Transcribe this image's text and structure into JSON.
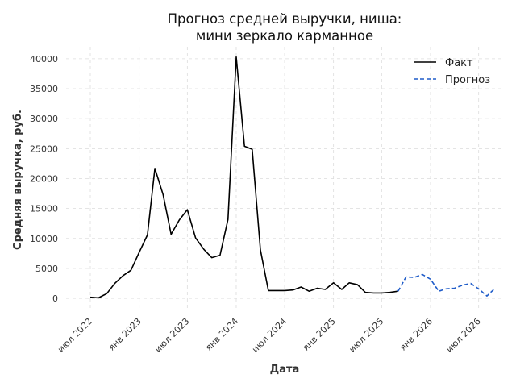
{
  "chart_data": {
    "type": "line",
    "title_lines": [
      "Прогноз средней выручки, ниша:",
      "мини зеркало карманное"
    ],
    "xlabel": "Дата",
    "ylabel": "Средняя выручка, руб.",
    "ylim": [
      -2000,
      42000
    ],
    "xlim": [
      "2022-04-01",
      "2026-10-01"
    ],
    "y_ticks": [
      0,
      5000,
      10000,
      15000,
      20000,
      25000,
      30000,
      35000,
      40000
    ],
    "x_ticks": [
      {
        "date": "2022-07-01",
        "label": "июл 2022"
      },
      {
        "date": "2023-01-01",
        "label": "янв 2023"
      },
      {
        "date": "2023-07-01",
        "label": "июл 2023"
      },
      {
        "date": "2024-01-01",
        "label": "янв 2024"
      },
      {
        "date": "2024-07-01",
        "label": "июл 2024"
      },
      {
        "date": "2025-01-01",
        "label": "янв 2025"
      },
      {
        "date": "2025-07-01",
        "label": "июл 2025"
      },
      {
        "date": "2026-01-01",
        "label": "янв 2026"
      },
      {
        "date": "2026-07-01",
        "label": "июл 2026"
      }
    ],
    "grid": true,
    "legend_position": "top-right",
    "series": [
      {
        "name": "Факт",
        "color": "#000000",
        "style": "solid",
        "points": [
          [
            "2022-07-01",
            200
          ],
          [
            "2022-08-01",
            100
          ],
          [
            "2022-09-01",
            800
          ],
          [
            "2022-10-01",
            2500
          ],
          [
            "2022-11-01",
            3800
          ],
          [
            "2022-12-01",
            4700
          ],
          [
            "2023-01-01",
            7700
          ],
          [
            "2023-02-01",
            10600
          ],
          [
            "2023-03-01",
            21700
          ],
          [
            "2023-04-01",
            17300
          ],
          [
            "2023-05-01",
            10700
          ],
          [
            "2023-06-01",
            13100
          ],
          [
            "2023-07-01",
            14800
          ],
          [
            "2023-08-01",
            10100
          ],
          [
            "2023-09-01",
            8200
          ],
          [
            "2023-10-01",
            6800
          ],
          [
            "2023-11-01",
            7200
          ],
          [
            "2023-12-01",
            13200
          ],
          [
            "2024-01-01",
            40300
          ],
          [
            "2024-02-01",
            25400
          ],
          [
            "2024-03-01",
            24900
          ],
          [
            "2024-04-01",
            8100
          ],
          [
            "2024-05-01",
            1300
          ],
          [
            "2024-06-01",
            1300
          ],
          [
            "2024-07-01",
            1300
          ],
          [
            "2024-08-01",
            1400
          ],
          [
            "2024-09-01",
            1900
          ],
          [
            "2024-10-01",
            1200
          ],
          [
            "2024-11-01",
            1700
          ],
          [
            "2024-12-01",
            1500
          ],
          [
            "2025-01-01",
            2600
          ],
          [
            "2025-02-01",
            1500
          ],
          [
            "2025-03-01",
            2600
          ],
          [
            "2025-04-01",
            2300
          ],
          [
            "2025-05-01",
            1000
          ],
          [
            "2025-06-01",
            900
          ],
          [
            "2025-07-01",
            900
          ],
          [
            "2025-08-01",
            1000
          ],
          [
            "2025-09-01",
            1200
          ]
        ]
      },
      {
        "name": "Прогноз",
        "color": "#1f5cc9",
        "style": "dashed",
        "points": [
          [
            "2025-09-01",
            1200
          ],
          [
            "2025-10-01",
            3600
          ],
          [
            "2025-11-01",
            3500
          ],
          [
            "2025-12-01",
            4000
          ],
          [
            "2026-01-01",
            3200
          ],
          [
            "2026-02-01",
            1200
          ],
          [
            "2026-03-01",
            1600
          ],
          [
            "2026-04-01",
            1700
          ],
          [
            "2026-05-01",
            2200
          ],
          [
            "2026-06-01",
            2500
          ],
          [
            "2026-07-01",
            1600
          ],
          [
            "2026-08-01",
            400
          ],
          [
            "2026-09-01",
            1700
          ]
        ]
      }
    ]
  }
}
